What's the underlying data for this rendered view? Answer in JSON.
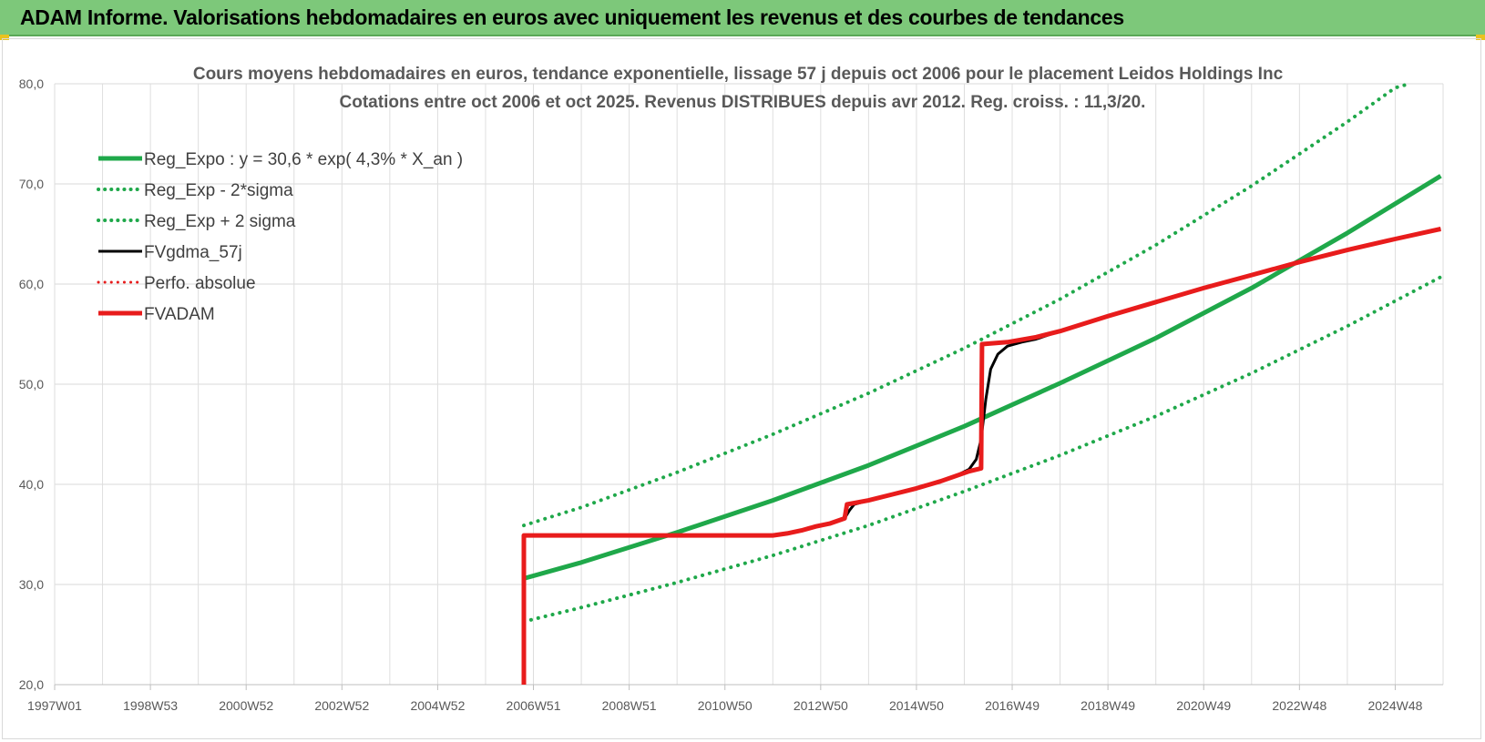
{
  "header": {
    "title": "ADAM Informe. Valorisations hebdomadaires en euros avec uniquement les revenus et des courbes de tendances"
  },
  "colors": {
    "banner": "#7dc87a",
    "green": "#1fa84a",
    "black": "#000000",
    "red": "#e81c1c"
  },
  "chart_data": {
    "type": "line",
    "title": "Cours moyens hebdomadaires en euros, tendance exponentielle, lissage 57 j depuis oct 2006 pour le placement Leidos Holdings Inc",
    "subtitle": "Cotations entre oct 2006 et oct 2025. Revenus DISTRIBUES depuis avr 2012. Reg. croiss. : 11,3/20.",
    "ylim": [
      20,
      80
    ],
    "yticks": [
      "20,0",
      "30,0",
      "40,0",
      "50,0",
      "60,0",
      "70,0",
      "80,0"
    ],
    "xlim": [
      1997.0,
      2026.0
    ],
    "xticks": [
      {
        "label": "1997W01",
        "x": 1997.0
      },
      {
        "label": "1998W53",
        "x": 1999.0
      },
      {
        "label": "2000W52",
        "x": 2001.0
      },
      {
        "label": "2002W52",
        "x": 2003.0
      },
      {
        "label": "2004W52",
        "x": 2005.0
      },
      {
        "label": "2006W51",
        "x": 2007.0
      },
      {
        "label": "2008W51",
        "x": 2009.0
      },
      {
        "label": "2010W50",
        "x": 2011.0
      },
      {
        "label": "2012W50",
        "x": 2013.0
      },
      {
        "label": "2014W50",
        "x": 2015.0
      },
      {
        "label": "2016W49",
        "x": 2017.0
      },
      {
        "label": "2018W49",
        "x": 2019.0
      },
      {
        "label": "2020W49",
        "x": 2021.0
      },
      {
        "label": "2022W48",
        "x": 2023.0
      },
      {
        "label": "2024W48",
        "x": 2025.0
      }
    ],
    "grid": true,
    "legend_position": "top-left",
    "series": [
      {
        "name": "Reg_Expo : y = 30,6 * exp( 4,3% *  X_an )",
        "color": "#1fa84a",
        "style": "solid",
        "width": 5,
        "points": [
          [
            2006.8,
            30.6
          ],
          [
            2008,
            32.2
          ],
          [
            2010,
            35.2
          ],
          [
            2012,
            38.4
          ],
          [
            2014,
            41.9
          ],
          [
            2016,
            45.8
          ],
          [
            2018,
            50.1
          ],
          [
            2020,
            54.6
          ],
          [
            2022,
            59.6
          ],
          [
            2024,
            65.1
          ],
          [
            2025.95,
            70.8
          ]
        ]
      },
      {
        "name": "Reg_Exp - 2*sigma",
        "color": "#1fa84a",
        "style": "dotted",
        "width": 4,
        "points": [
          [
            2006.8,
            26.3
          ],
          [
            2008,
            27.7
          ],
          [
            2010,
            30.2
          ],
          [
            2012,
            32.9
          ],
          [
            2014,
            35.9
          ],
          [
            2016,
            39.3
          ],
          [
            2018,
            42.9
          ],
          [
            2020,
            46.8
          ],
          [
            2022,
            51.1
          ],
          [
            2024,
            55.8
          ],
          [
            2025.95,
            60.7
          ]
        ]
      },
      {
        "name": "Reg_Exp + 2 sigma",
        "color": "#1fa84a",
        "style": "dotted",
        "width": 4,
        "points": [
          [
            2006.8,
            35.9
          ],
          [
            2008,
            37.7
          ],
          [
            2010,
            41.2
          ],
          [
            2012,
            45.0
          ],
          [
            2014,
            49.1
          ],
          [
            2016,
            53.6
          ],
          [
            2018,
            58.5
          ],
          [
            2020,
            63.9
          ],
          [
            2022,
            69.8
          ],
          [
            2024,
            76.2
          ],
          [
            2025,
            79.6
          ],
          [
            2025.3,
            80.0
          ]
        ]
      },
      {
        "name": "FVgdma_57j",
        "color": "#000000",
        "style": "solid",
        "width": 3,
        "points": [
          [
            2006.8,
            34.9
          ],
          [
            2012,
            34.9
          ],
          [
            2012.3,
            35.1
          ],
          [
            2012.6,
            35.4
          ],
          [
            2012.9,
            35.8
          ],
          [
            2013.2,
            36.1
          ],
          [
            2013.5,
            36.6
          ],
          [
            2013.6,
            37.4
          ],
          [
            2013.7,
            38.0
          ],
          [
            2014,
            38.4
          ],
          [
            2014.5,
            39.0
          ],
          [
            2015,
            39.6
          ],
          [
            2015.5,
            40.3
          ],
          [
            2015.8,
            40.8
          ],
          [
            2016.1,
            41.5
          ],
          [
            2016.25,
            42.5
          ],
          [
            2016.35,
            44.5
          ],
          [
            2016.45,
            48.5
          ],
          [
            2016.55,
            51.5
          ],
          [
            2016.7,
            53.0
          ],
          [
            2016.9,
            53.8
          ],
          [
            2017.2,
            54.2
          ],
          [
            2017.5,
            54.5
          ],
          [
            2018,
            55.3
          ],
          [
            2019,
            56.8
          ],
          [
            2020,
            58.2
          ],
          [
            2021,
            59.6
          ],
          [
            2022,
            60.9
          ],
          [
            2023,
            62.2
          ],
          [
            2024,
            63.4
          ],
          [
            2025,
            64.5
          ],
          [
            2025.95,
            65.5
          ]
        ]
      },
      {
        "name": "Perfo. absolue",
        "color": "#e81c1c",
        "style": "dotted",
        "width": 3,
        "points": [
          [
            2006.8,
            34.9
          ],
          [
            2012,
            34.9
          ],
          [
            2012.3,
            35.1
          ],
          [
            2012.6,
            35.4
          ],
          [
            2012.9,
            35.8
          ],
          [
            2013.2,
            36.1
          ],
          [
            2013.5,
            36.6
          ],
          [
            2013.55,
            38.0
          ],
          [
            2014,
            38.4
          ],
          [
            2014.5,
            39.0
          ],
          [
            2015,
            39.6
          ],
          [
            2015.5,
            40.3
          ],
          [
            2015.8,
            40.8
          ],
          [
            2016.1,
            41.3
          ],
          [
            2016.35,
            41.6
          ],
          [
            2016.37,
            54.0
          ],
          [
            2016.9,
            54.2
          ],
          [
            2017.5,
            54.7
          ],
          [
            2018,
            55.3
          ],
          [
            2019,
            56.8
          ],
          [
            2020,
            58.2
          ],
          [
            2021,
            59.6
          ],
          [
            2022,
            60.9
          ],
          [
            2023,
            62.2
          ],
          [
            2024,
            63.4
          ],
          [
            2025,
            64.5
          ],
          [
            2025.95,
            65.5
          ]
        ]
      },
      {
        "name": "FVADAM",
        "color": "#e81c1c",
        "style": "solid",
        "width": 5,
        "points": [
          [
            2006.8,
            20.0
          ],
          [
            2006.8,
            34.9
          ],
          [
            2012,
            34.9
          ],
          [
            2012.3,
            35.1
          ],
          [
            2012.6,
            35.4
          ],
          [
            2012.9,
            35.8
          ],
          [
            2013.2,
            36.1
          ],
          [
            2013.5,
            36.6
          ],
          [
            2013.55,
            38.0
          ],
          [
            2014,
            38.4
          ],
          [
            2014.5,
            39.0
          ],
          [
            2015,
            39.6
          ],
          [
            2015.5,
            40.3
          ],
          [
            2015.8,
            40.8
          ],
          [
            2016.1,
            41.3
          ],
          [
            2016.35,
            41.6
          ],
          [
            2016.37,
            54.0
          ],
          [
            2016.9,
            54.2
          ],
          [
            2017.5,
            54.7
          ],
          [
            2018,
            55.3
          ],
          [
            2019,
            56.8
          ],
          [
            2020,
            58.2
          ],
          [
            2021,
            59.6
          ],
          [
            2022,
            60.9
          ],
          [
            2023,
            62.2
          ],
          [
            2024,
            63.4
          ],
          [
            2025,
            64.5
          ],
          [
            2025.95,
            65.5
          ]
        ]
      }
    ]
  }
}
